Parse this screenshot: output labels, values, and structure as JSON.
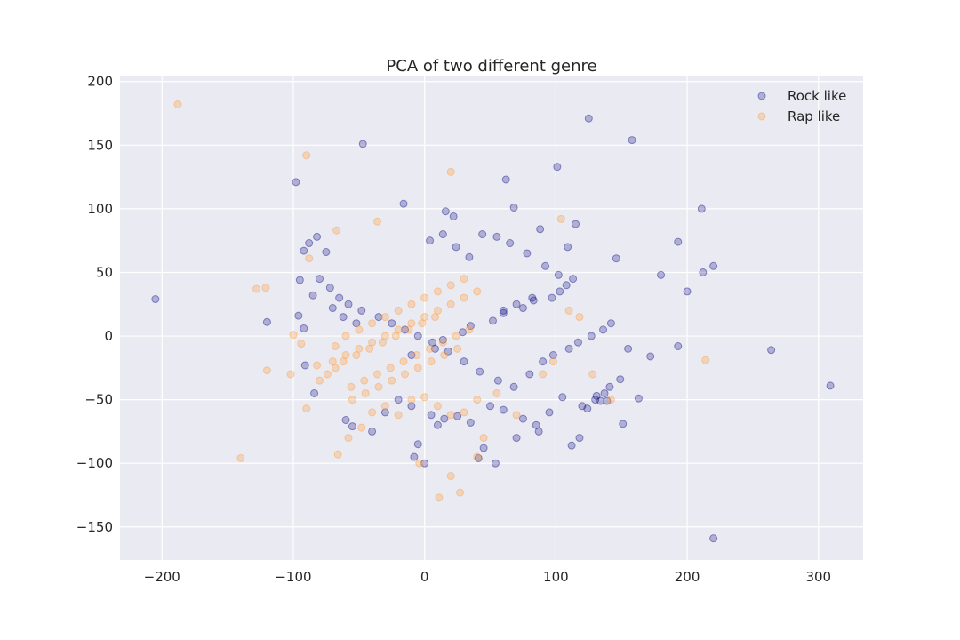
{
  "chart_data": {
    "type": "scatter",
    "title": "PCA of two different genre",
    "xlabel": "",
    "ylabel": "",
    "xlim": [
      -232,
      334
    ],
    "ylim": [
      -176,
      204
    ],
    "xticks": [
      -200,
      -100,
      0,
      100,
      200,
      300
    ],
    "yticks": [
      -150,
      -100,
      -50,
      0,
      50,
      100,
      150,
      200
    ],
    "xtick_labels": [
      "−200",
      "−100",
      "0",
      "100",
      "200",
      "300"
    ],
    "ytick_labels": [
      "−150",
      "−100",
      "−50",
      "0",
      "50",
      "100",
      "150",
      "200"
    ],
    "grid": true,
    "legend_position": "top-right",
    "background": "#eaeaf2",
    "series": [
      {
        "name": "Rock like",
        "color": "#000080",
        "alpha": 0.25,
        "x": [
          -205,
          -98,
          -47,
          125,
          158,
          101,
          62,
          211,
          -16,
          22,
          16,
          68,
          193,
          220,
          212,
          180,
          200,
          193,
          264,
          309,
          220,
          151,
          163,
          134,
          -120,
          -96,
          -95,
          -92,
          -91,
          -84,
          146,
          115,
          109,
          88,
          0,
          -5,
          -8,
          10,
          41,
          45,
          54,
          70,
          87,
          112,
          118,
          124,
          131,
          137,
          139,
          149,
          155,
          172,
          -60,
          -55,
          -40,
          -30,
          -20,
          -10,
          5,
          15,
          25,
          35,
          50,
          60,
          75,
          85,
          95,
          105,
          120,
          130,
          141,
          4,
          14,
          24,
          34,
          44,
          55,
          65,
          78,
          92,
          102,
          113,
          -75,
          -82,
          -88,
          -92,
          -85,
          -70,
          -62,
          -52,
          108,
          103,
          97,
          83,
          75,
          60,
          52,
          35,
          29,
          14,
          8,
          -10,
          -80,
          -72,
          -65,
          -58,
          -48,
          -35,
          -25,
          -15,
          -5,
          6,
          18,
          30,
          42,
          56,
          68,
          80,
          90,
          98,
          110,
          117,
          127,
          136,
          142,
          60,
          70,
          82
        ],
        "y": [
          29,
          121,
          151,
          171,
          154,
          133,
          123,
          100,
          104,
          94,
          98,
          101,
          74,
          55,
          50,
          48,
          35,
          -8,
          -11,
          -39,
          -159,
          -69,
          -49,
          -51,
          11,
          16,
          44,
          6,
          -23,
          -45,
          61,
          88,
          70,
          84,
          -100,
          -85,
          -95,
          -70,
          -96,
          -88,
          -100,
          -80,
          -75,
          -86,
          -80,
          -57,
          -47,
          -45,
          -51,
          -34,
          -10,
          -16,
          -66,
          -71,
          -75,
          -60,
          -50,
          -55,
          -62,
          -65,
          -63,
          -68,
          -55,
          -58,
          -65,
          -70,
          -60,
          -48,
          -55,
          -50,
          -40,
          75,
          80,
          70,
          62,
          80,
          78,
          73,
          65,
          55,
          48,
          45,
          66,
          78,
          73,
          67,
          32,
          22,
          15,
          10,
          40,
          35,
          30,
          28,
          22,
          18,
          12,
          8,
          3,
          -3,
          -10,
          -15,
          45,
          38,
          30,
          25,
          20,
          15,
          10,
          5,
          0,
          -5,
          -12,
          -20,
          -28,
          -35,
          -40,
          -30,
          -20,
          -15,
          -10,
          -5,
          0,
          5,
          10,
          20,
          25,
          30
        ]
      },
      {
        "name": "Rap like",
        "color": "#ffa040",
        "alpha": 0.3,
        "x": [
          -188,
          -90,
          20,
          -128,
          -121,
          -67,
          -88,
          -36,
          -140,
          -100,
          -120,
          -102,
          -94,
          -90,
          -82,
          -68,
          -66,
          -58,
          -48,
          -40,
          -30,
          -20,
          -10,
          0,
          10,
          20,
          30,
          40,
          55,
          70,
          90,
          98,
          104,
          110,
          118,
          128,
          142,
          214,
          11,
          27,
          -4,
          20,
          40,
          45,
          -56,
          -46,
          -36,
          -26,
          -16,
          -6,
          4,
          14,
          24,
          34,
          -70,
          -60,
          -50,
          -40,
          -30,
          -20,
          -10,
          0,
          10,
          20,
          30,
          40,
          -60,
          -50,
          -40,
          -30,
          -20,
          -10,
          0,
          10,
          20,
          30,
          -55,
          -45,
          -35,
          -25,
          -15,
          -5,
          5,
          15,
          25,
          -80,
          -74,
          -68,
          -62,
          -52,
          -42,
          -32,
          -22,
          -12,
          -2,
          8
        ],
        "y": [
          182,
          142,
          129,
          37,
          38,
          83,
          61,
          90,
          -96,
          1,
          -27,
          -30,
          -6,
          -57,
          -23,
          -8,
          -93,
          -80,
          -72,
          -60,
          -55,
          -62,
          -50,
          -48,
          -55,
          -62,
          -60,
          -50,
          -45,
          -62,
          -30,
          -20,
          92,
          20,
          15,
          -30,
          -50,
          -19,
          -127,
          -123,
          -100,
          -110,
          -95,
          -80,
          -40,
          -35,
          -30,
          -25,
          -20,
          -15,
          -10,
          -5,
          0,
          5,
          -20,
          -15,
          -10,
          -5,
          0,
          5,
          10,
          15,
          20,
          25,
          30,
          35,
          0,
          5,
          10,
          15,
          20,
          25,
          30,
          35,
          40,
          45,
          -50,
          -45,
          -40,
          -35,
          -30,
          -25,
          -20,
          -15,
          -10,
          -35,
          -30,
          -25,
          -20,
          -15,
          -10,
          -5,
          0,
          5,
          10,
          15
        ]
      }
    ]
  }
}
